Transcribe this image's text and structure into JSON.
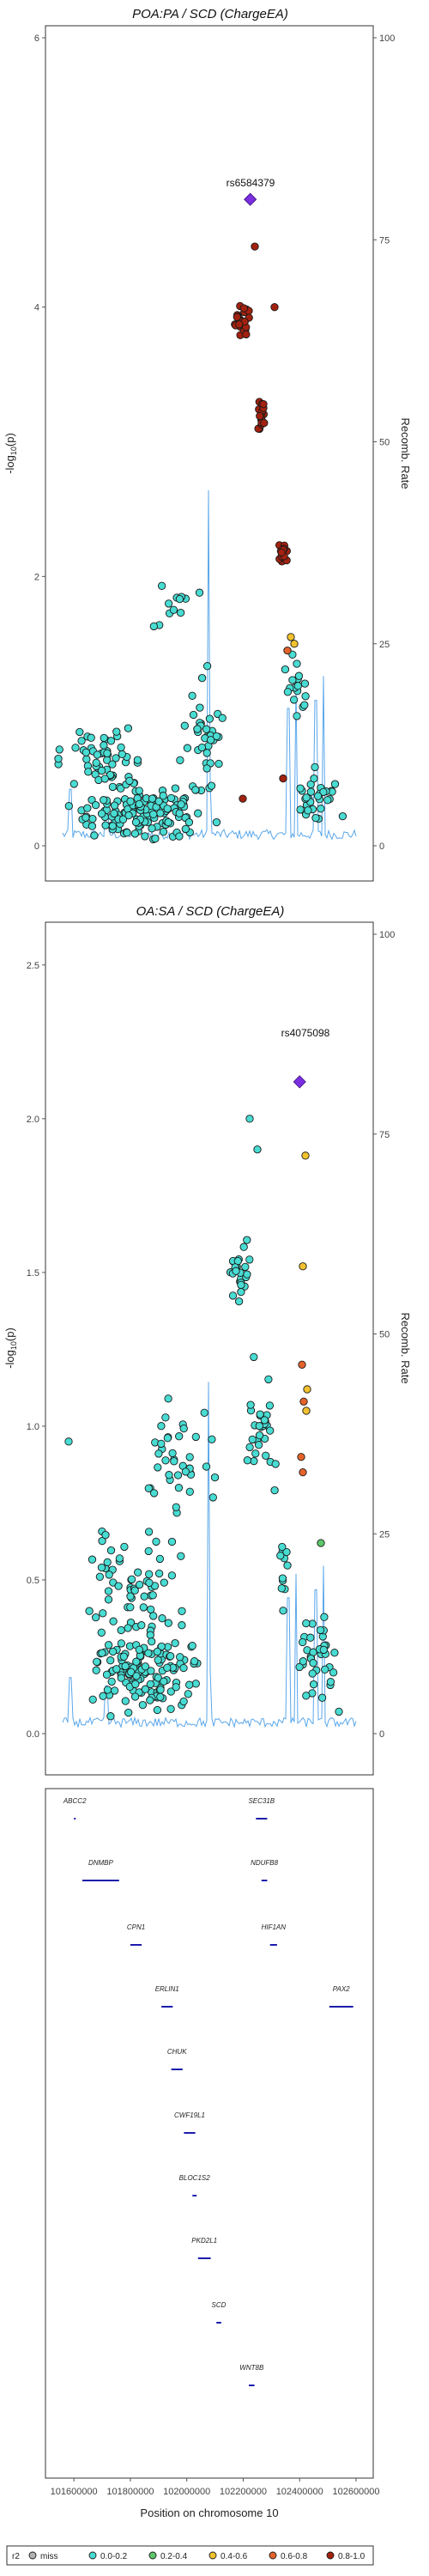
{
  "colors": {
    "miss": "#b3b3b3",
    "r2_0_0_2": "#48dcd3",
    "r2_0_2_0_4": "#5ec76a",
    "r2_0_4_0_6": "#f2c12e",
    "r2_0_6_0_8": "#e3632b",
    "r2_0_8_1_0": "#a3210f",
    "lead": "#7b2ee0",
    "recomb": "#5aa7ea",
    "gene": "#1c1cad"
  },
  "chart_data": [
    {
      "type": "scatter",
      "title": "POA:PA / SCD (ChargeEA)",
      "ylabel": "-log10(p)",
      "y2label": "Recomb. Rate",
      "ylim": [
        0,
        6
      ],
      "yticks": [
        "0",
        "2",
        "4",
        "6"
      ],
      "y2lim": [
        0,
        100
      ],
      "y2ticks": [
        "0",
        "25",
        "50",
        "75",
        "100"
      ],
      "xlim": [
        101560000,
        102600000
      ],
      "lead_snp": {
        "label": "rs6584379",
        "x": 102225000,
        "y": 4.8
      },
      "series": [
        {
          "group": "0.0-0.2",
          "ymax": 2.9
        },
        {
          "group": "0.2-0.4",
          "ymax": 0
        },
        {
          "group": "0.4-0.6",
          "ymax": 1.55
        },
        {
          "group": "0.6-0.8",
          "ymax": 1.45
        },
        {
          "group": "0.8-1.0",
          "ymax": 4.5
        }
      ]
    },
    {
      "type": "scatter",
      "title": "OA:SA / SCD (ChargeEA)",
      "ylabel": "-log10(p)",
      "y2label": "Recomb. Rate",
      "ylim": [
        0,
        2.6
      ],
      "yticks": [
        "0.0",
        "0.5",
        "1.0",
        "1.5",
        "2.0",
        "2.5"
      ],
      "y2lim": [
        0,
        100
      ],
      "y2ticks": [
        "0",
        "25",
        "50",
        "75",
        "100"
      ],
      "xlim": [
        101560000,
        102600000
      ],
      "lead_snp": {
        "label": "rs4075098",
        "x": 102400000,
        "y": 2.12
      }
    },
    {
      "type": "gene-track",
      "xlabel": "Position on chromosome 10",
      "xlim": [
        101560000,
        102600000
      ],
      "xticks": [
        "101600000",
        "101800000",
        "102000000",
        "102200000",
        "102400000",
        "102600000"
      ],
      "genes": [
        {
          "name": "ABCC2",
          "start": 101600000,
          "end": 101602000
        },
        {
          "name": "DNMBP",
          "start": 101630000,
          "end": 101760000
        },
        {
          "name": "CPN1",
          "start": 101800000,
          "end": 101840000
        },
        {
          "name": "ERLIN1",
          "start": 101910000,
          "end": 101950000
        },
        {
          "name": "CHUK",
          "start": 101945000,
          "end": 101985000
        },
        {
          "name": "CWF19L1",
          "start": 101990000,
          "end": 102030000
        },
        {
          "name": "BLOC1S2",
          "start": 102020000,
          "end": 102035000
        },
        {
          "name": "PKD2L1",
          "start": 102040000,
          "end": 102085000
        },
        {
          "name": "SCD",
          "start": 102105000,
          "end": 102122000
        },
        {
          "name": "WNT8B",
          "start": 102220000,
          "end": 102240000
        },
        {
          "name": "SEC31B",
          "start": 102245000,
          "end": 102285000
        },
        {
          "name": "NDUFB8",
          "start": 102265000,
          "end": 102285000
        },
        {
          "name": "HIF1AN",
          "start": 102295000,
          "end": 102320000
        },
        {
          "name": "PAX2",
          "start": 102505000,
          "end": 102590000
        }
      ]
    }
  ],
  "legend": {
    "title": "r2",
    "items": [
      "miss",
      "0.0-0.2",
      "0.2-0.4",
      "0.4-0.6",
      "0.6-0.8",
      "0.8-1.0"
    ]
  }
}
